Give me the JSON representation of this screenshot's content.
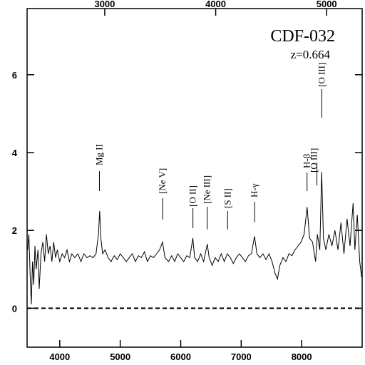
{
  "chart_data": {
    "type": "line",
    "title": "CDF-032",
    "subtitle": "z=0.664",
    "x": [
      3470,
      3490,
      3510,
      3530,
      3550,
      3570,
      3590,
      3610,
      3640,
      3660,
      3690,
      3720,
      3750,
      3780,
      3810,
      3840,
      3870,
      3900,
      3930,
      3960,
      4000,
      4040,
      4080,
      4120,
      4160,
      4200,
      4250,
      4300,
      4350,
      4400,
      4450,
      4500,
      4550,
      4600,
      4640,
      4660,
      4680,
      4710,
      4750,
      4800,
      4850,
      4900,
      4950,
      5000,
      5050,
      5100,
      5150,
      5200,
      5250,
      5300,
      5350,
      5400,
      5450,
      5500,
      5550,
      5600,
      5650,
      5700,
      5740,
      5800,
      5850,
      5900,
      5950,
      6000,
      6050,
      6100,
      6150,
      6200,
      6230,
      6280,
      6330,
      6380,
      6440,
      6470,
      6520,
      6570,
      6620,
      6670,
      6720,
      6770,
      6820,
      6870,
      6920,
      6970,
      7020,
      7070,
      7120,
      7170,
      7220,
      7260,
      7310,
      7360,
      7410,
      7460,
      7510,
      7560,
      7600,
      7640,
      7690,
      7740,
      7790,
      7840,
      7890,
      7940,
      7990,
      8040,
      8090,
      8130,
      8180,
      8230,
      8260,
      8300,
      8330,
      8360,
      8400,
      8450,
      8500,
      8550,
      8600,
      8650,
      8700,
      8750,
      8800,
      8850,
      8880,
      8920,
      8960,
      8990
    ],
    "series": [
      {
        "color": "#000000",
        "values": [
          1.5,
          1.9,
          0.9,
          0.1,
          1.2,
          0.6,
          1.6,
          1.0,
          1.5,
          0.5,
          1.4,
          1.7,
          1.2,
          1.9,
          1.4,
          1.6,
          1.2,
          1.7,
          1.3,
          1.5,
          1.2,
          1.4,
          1.3,
          1.5,
          1.2,
          1.4,
          1.3,
          1.4,
          1.2,
          1.4,
          1.3,
          1.35,
          1.3,
          1.4,
          1.9,
          2.5,
          1.8,
          1.4,
          1.5,
          1.3,
          1.2,
          1.35,
          1.25,
          1.4,
          1.3,
          1.2,
          1.3,
          1.4,
          1.2,
          1.35,
          1.3,
          1.45,
          1.2,
          1.35,
          1.3,
          1.4,
          1.5,
          1.7,
          1.3,
          1.2,
          1.35,
          1.2,
          1.4,
          1.3,
          1.2,
          1.35,
          1.3,
          1.8,
          1.3,
          1.2,
          1.4,
          1.2,
          1.65,
          1.3,
          1.1,
          1.3,
          1.2,
          1.4,
          1.2,
          1.4,
          1.3,
          1.15,
          1.3,
          1.4,
          1.3,
          1.2,
          1.35,
          1.4,
          1.85,
          1.4,
          1.3,
          1.4,
          1.25,
          1.4,
          1.2,
          0.9,
          0.75,
          1.1,
          1.3,
          1.2,
          1.4,
          1.35,
          1.5,
          1.6,
          1.7,
          1.9,
          2.6,
          1.8,
          1.7,
          1.2,
          1.9,
          1.5,
          3.5,
          1.8,
          1.5,
          1.9,
          1.6,
          2.0,
          1.5,
          2.2,
          1.4,
          2.3,
          1.6,
          2.7,
          1.5,
          2.4,
          1.2,
          0.8
        ]
      }
    ],
    "xlim": [
      3460,
      9000
    ],
    "xticks": [
      4000,
      5000,
      6000,
      7000,
      8000
    ],
    "x2lim": [
      2300,
      5320
    ],
    "x2ticks": [
      3000,
      4000,
      5000
    ],
    "ylim": [
      -1,
      7.7
    ],
    "yticks": [
      0,
      2,
      4,
      6
    ],
    "hline": 0,
    "annotations": [
      {
        "text": "Mg II",
        "x": 4656
      },
      {
        "text": "[Ne V]",
        "x": 5701
      },
      {
        "text": "[O II]",
        "x": 6202
      },
      {
        "text": "[Ne III]",
        "x": 6438
      },
      {
        "text": "[S II]",
        "x": 6776
      },
      {
        "text": "H-γ",
        "x": 7222
      },
      {
        "text": "H-β",
        "x": 8089
      },
      {
        "text": "[O III]",
        "x": 8252
      },
      {
        "text": "[O III]",
        "x": 8332
      }
    ]
  }
}
